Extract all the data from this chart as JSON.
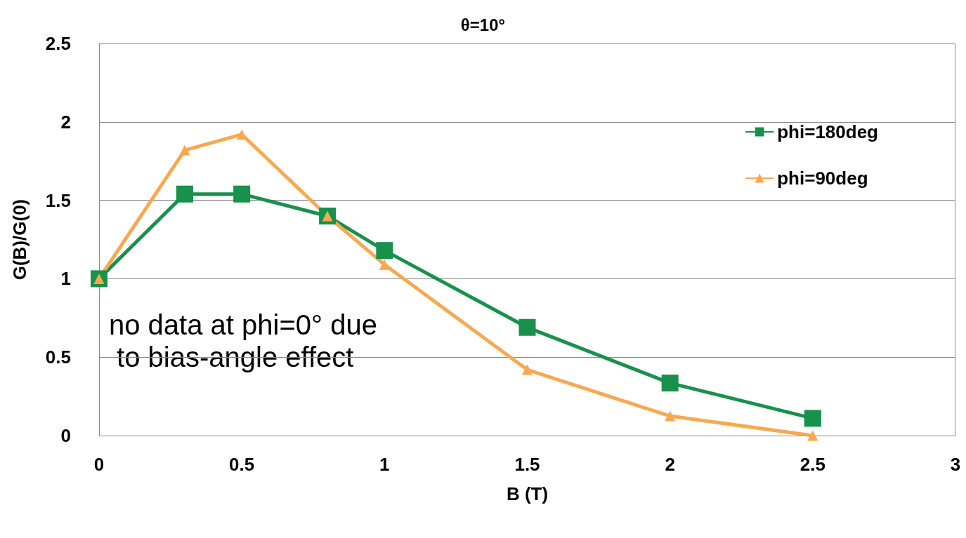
{
  "chart_data": {
    "type": "line",
    "title": "θ=10°",
    "xlabel": "B (T)",
    "ylabel": "G(B)/G(0)",
    "xlim": [
      0,
      3
    ],
    "xticks": [
      0,
      0.5,
      1,
      1.5,
      2,
      2.5,
      3
    ],
    "ylim": [
      0,
      2.5
    ],
    "yticks": [
      0,
      0.5,
      1,
      1.5,
      2,
      2.5
    ],
    "x": [
      0,
      0.3,
      0.5,
      0.8,
      1,
      1.5,
      2,
      2.5
    ],
    "series": [
      {
        "name": "phi=180deg",
        "color": "#17914c",
        "marker": "square",
        "values": [
          1,
          1.54,
          1.54,
          1.4,
          1.18,
          0.69,
          0.335,
          0.11
        ]
      },
      {
        "name": "phi=90deg",
        "color": "#f8a94f",
        "marker": "triangle",
        "values": [
          1,
          1.82,
          1.92,
          1.4,
          1.09,
          0.42,
          0.125,
          0
        ]
      }
    ],
    "grid": "y",
    "legend": "top right",
    "line_style": "solid",
    "annotations": [
      "no data at phi=0° due to bias-angle effect"
    ]
  }
}
